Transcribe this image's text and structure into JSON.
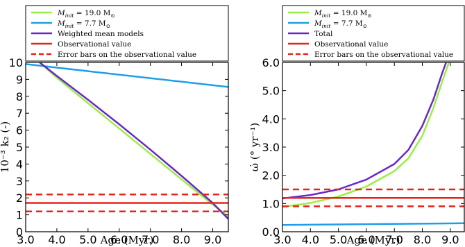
{
  "chart_data": [
    {
      "type": "line",
      "xlabel": "Age (Myr)",
      "ylabel": "10⁻³ k₂ (-)",
      "xlim": [
        3.0,
        9.5
      ],
      "ylim": [
        0,
        10
      ],
      "xticks": [
        "3.0",
        "4.0",
        "5.0",
        "6.0",
        "7.0",
        "8.0",
        "9.0"
      ],
      "yticks": [
        "0",
        "1",
        "2",
        "3",
        "4",
        "5",
        "6",
        "7",
        "8",
        "9",
        "10"
      ],
      "legend_position": "top",
      "series": [
        {
          "name": "M_init = 19.0 M⊙",
          "legend": {
            "main": "M",
            "sub": "init",
            "rest": " = 19.0 M",
            "sun": "⊙"
          },
          "color": "#99ee44",
          "style": "solid",
          "x": [
            3.45,
            4.0,
            5.0,
            6.0,
            7.0,
            8.0,
            9.0,
            9.5
          ],
          "y": [
            10.0,
            9.1,
            7.6,
            6.1,
            4.6,
            3.1,
            1.6,
            0.9
          ]
        },
        {
          "name": "M_init = 7.7 M⊙",
          "legend": {
            "main": "M",
            "sub": "init",
            "rest": " = 7.7 M",
            "sun": "⊙"
          },
          "color": "#1e9ee8",
          "style": "solid",
          "x": [
            3.0,
            9.5
          ],
          "y": [
            9.9,
            8.55
          ]
        },
        {
          "name": "Weighted mean models",
          "color": "#6a27c7",
          "style": "solid",
          "x": [
            3.45,
            4.0,
            5.0,
            6.0,
            7.0,
            8.0,
            9.0,
            9.5
          ],
          "y": [
            10.0,
            9.2,
            7.8,
            6.35,
            4.85,
            3.3,
            1.7,
            0.75
          ]
        },
        {
          "name": "Observational value",
          "color": "#e8231a",
          "style": "solid",
          "x": [
            3.0,
            9.5
          ],
          "y": [
            1.7,
            1.7
          ]
        },
        {
          "name": "Error bars on the observational value",
          "color": "#e8231a",
          "style": "dashed",
          "x": [
            3.0,
            9.5
          ],
          "y": [
            2.2,
            2.2
          ]
        },
        {
          "name": "",
          "color": "#e8231a",
          "style": "dashed",
          "x": [
            3.0,
            9.5
          ],
          "y": [
            1.2,
            1.2
          ]
        }
      ]
    },
    {
      "type": "line",
      "xlabel": "Age (Myr)",
      "ylabel": "ω̇ (° yr⁻¹)",
      "xlim": [
        3.0,
        9.5
      ],
      "ylim": [
        0.0,
        6.0
      ],
      "xticks": [
        "3.0",
        "4.0",
        "5.0",
        "6.0",
        "7.0",
        "8.0",
        "9.0"
      ],
      "yticks": [
        "0.0",
        "1.0",
        "2.0",
        "3.0",
        "4.0",
        "5.0",
        "6.0"
      ],
      "legend_position": "top",
      "series": [
        {
          "name": "M_init = 19.0 M⊙",
          "legend": {
            "main": "M",
            "sub": "init",
            "rest": " = 19.0 M",
            "sun": "⊙"
          },
          "color": "#99ee44",
          "style": "solid",
          "x": [
            3.0,
            4.0,
            5.0,
            6.0,
            7.0,
            7.5,
            8.0,
            8.4,
            8.7,
            8.95
          ],
          "y": [
            0.88,
            1.02,
            1.25,
            1.6,
            2.15,
            2.6,
            3.4,
            4.4,
            5.3,
            6.0
          ]
        },
        {
          "name": "M_init = 7.7 M⊙",
          "legend": {
            "main": "M",
            "sub": "init",
            "rest": " = 7.7 M",
            "sun": "⊙"
          },
          "color": "#1e9ee8",
          "style": "solid",
          "x": [
            3.0,
            9.5
          ],
          "y": [
            0.24,
            0.3
          ]
        },
        {
          "name": "Total",
          "color": "#6a27c7",
          "style": "solid",
          "x": [
            3.0,
            4.0,
            5.0,
            6.0,
            7.0,
            7.5,
            8.0,
            8.4,
            8.7,
            8.85
          ],
          "y": [
            1.18,
            1.3,
            1.5,
            1.85,
            2.4,
            2.9,
            3.75,
            4.7,
            5.6,
            6.0
          ]
        },
        {
          "name": "Observational value",
          "color": "#e8231a",
          "style": "solid",
          "x": [
            3.0,
            9.5
          ],
          "y": [
            1.2,
            1.2
          ]
        },
        {
          "name": "Error bars on the observational value",
          "color": "#e8231a",
          "style": "dashed",
          "x": [
            3.0,
            9.5
          ],
          "y": [
            1.5,
            1.5
          ]
        },
        {
          "name": "",
          "color": "#e8231a",
          "style": "dashed",
          "x": [
            3.0,
            9.5
          ],
          "y": [
            0.9,
            0.9
          ]
        }
      ]
    }
  ]
}
